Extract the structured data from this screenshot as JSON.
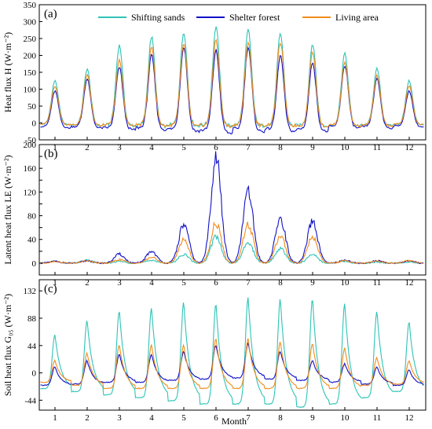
{
  "figure": {
    "xlabel": "Month",
    "months": [
      "1",
      "2",
      "3",
      "4",
      "5",
      "6",
      "7",
      "8",
      "9",
      "10",
      "11",
      "12"
    ],
    "colors": {
      "sand": "#2ec4b6",
      "forest": "#1010c8",
      "living": "#f28c1c"
    },
    "legend": [
      {
        "key": "sand",
        "label": "Shifting sands"
      },
      {
        "key": "forest",
        "label": "Shelter forest"
      },
      {
        "key": "living",
        "label": "Living area"
      }
    ],
    "legend_placement": "top (inside panel a)"
  },
  "chart_data": [
    {
      "type": "line",
      "panel_label": "(a)",
      "ylabel": "Heat flux H (W·m⁻²)",
      "ylim": [
        -50,
        350
      ],
      "yticks": [
        -50,
        0,
        50,
        100,
        150,
        200,
        250,
        300,
        350
      ],
      "x": [
        1,
        2,
        3,
        4,
        5,
        6,
        7,
        8,
        9,
        10,
        11,
        12
      ],
      "series": [
        {
          "key": "sand",
          "name": "Shifting sands",
          "daily_max": [
            125,
            160,
            230,
            255,
            270,
            285,
            275,
            265,
            235,
            205,
            160,
            125
          ],
          "night_min": [
            -5,
            -8,
            -8,
            -10,
            -8,
            -8,
            -8,
            -8,
            -10,
            -8,
            -8,
            -5
          ]
        },
        {
          "key": "forest",
          "name": "Shelter forest",
          "daily_max": [
            95,
            130,
            165,
            200,
            225,
            215,
            225,
            200,
            180,
            170,
            130,
            95
          ],
          "night_min": [
            -15,
            -15,
            -20,
            -20,
            -25,
            -30,
            -25,
            -25,
            -25,
            -15,
            -15,
            -12
          ]
        },
        {
          "key": "living",
          "name": "Living area",
          "daily_max": [
            110,
            145,
            185,
            225,
            235,
            245,
            240,
            240,
            210,
            180,
            140,
            110
          ],
          "night_min": [
            -5,
            -8,
            -8,
            -8,
            -10,
            -10,
            -8,
            -8,
            -10,
            -8,
            -8,
            -5
          ]
        }
      ]
    },
    {
      "type": "line",
      "panel_label": "(b)",
      "ylabel": "Latent heat flux LE (W·m⁻²)",
      "ylim": [
        -20,
        200
      ],
      "yticks": [
        0,
        20,
        40,
        60,
        80,
        100,
        120,
        140,
        160,
        180,
        200
      ],
      "ytick_labels": [
        "0",
        "",
        "40",
        "",
        "80",
        "",
        "120",
        "",
        "160",
        "",
        "200"
      ],
      "x": [
        1,
        2,
        3,
        4,
        5,
        6,
        7,
        8,
        9,
        10,
        11,
        12
      ],
      "series": [
        {
          "key": "sand",
          "name": "Shifting sands",
          "daily_peak": [
            3,
            5,
            3,
            5,
            15,
            45,
            35,
            25,
            15,
            3,
            2,
            2
          ]
        },
        {
          "key": "forest",
          "name": "Shelter forest",
          "daily_peak": [
            3,
            4,
            15,
            20,
            65,
            180,
            120,
            75,
            70,
            5,
            4,
            4
          ]
        },
        {
          "key": "living",
          "name": "Living area",
          "daily_peak": [
            3,
            4,
            6,
            10,
            40,
            68,
            65,
            45,
            45,
            4,
            4,
            4
          ]
        }
      ]
    },
    {
      "type": "line",
      "panel_label": "(c)",
      "ylabel": "Soil heat flux G₀₅ (W·m⁻²)",
      "ylim": [
        -60,
        150
      ],
      "yticks": [
        -44,
        0,
        44,
        88,
        132
      ],
      "x": [
        1,
        2,
        3,
        4,
        5,
        6,
        7,
        8,
        9,
        10,
        11,
        12
      ],
      "series": [
        {
          "key": "sand",
          "name": "Shifting sands",
          "daily_max": [
            62,
            85,
            100,
            105,
            115,
            112,
            122,
            120,
            120,
            112,
            100,
            82
          ],
          "night_min": [
            -25,
            -30,
            -35,
            -40,
            -45,
            -50,
            -50,
            -50,
            -55,
            -50,
            -40,
            -30
          ]
        },
        {
          "key": "forest",
          "name": "Shelter forest",
          "daily_max": [
            10,
            20,
            30,
            30,
            35,
            45,
            48,
            35,
            20,
            15,
            10,
            5
          ],
          "night_min": [
            -20,
            -18,
            -15,
            -15,
            -12,
            -10,
            -8,
            -10,
            -12,
            -15,
            -18,
            -20
          ]
        },
        {
          "key": "living",
          "name": "Living area",
          "daily_max": [
            20,
            32,
            45,
            45,
            45,
            55,
            55,
            50,
            48,
            40,
            25,
            20
          ],
          "night_min": [
            -15,
            -20,
            -25,
            -25,
            -25,
            -25,
            -25,
            -25,
            -25,
            -25,
            -20,
            -18
          ]
        }
      ]
    }
  ]
}
